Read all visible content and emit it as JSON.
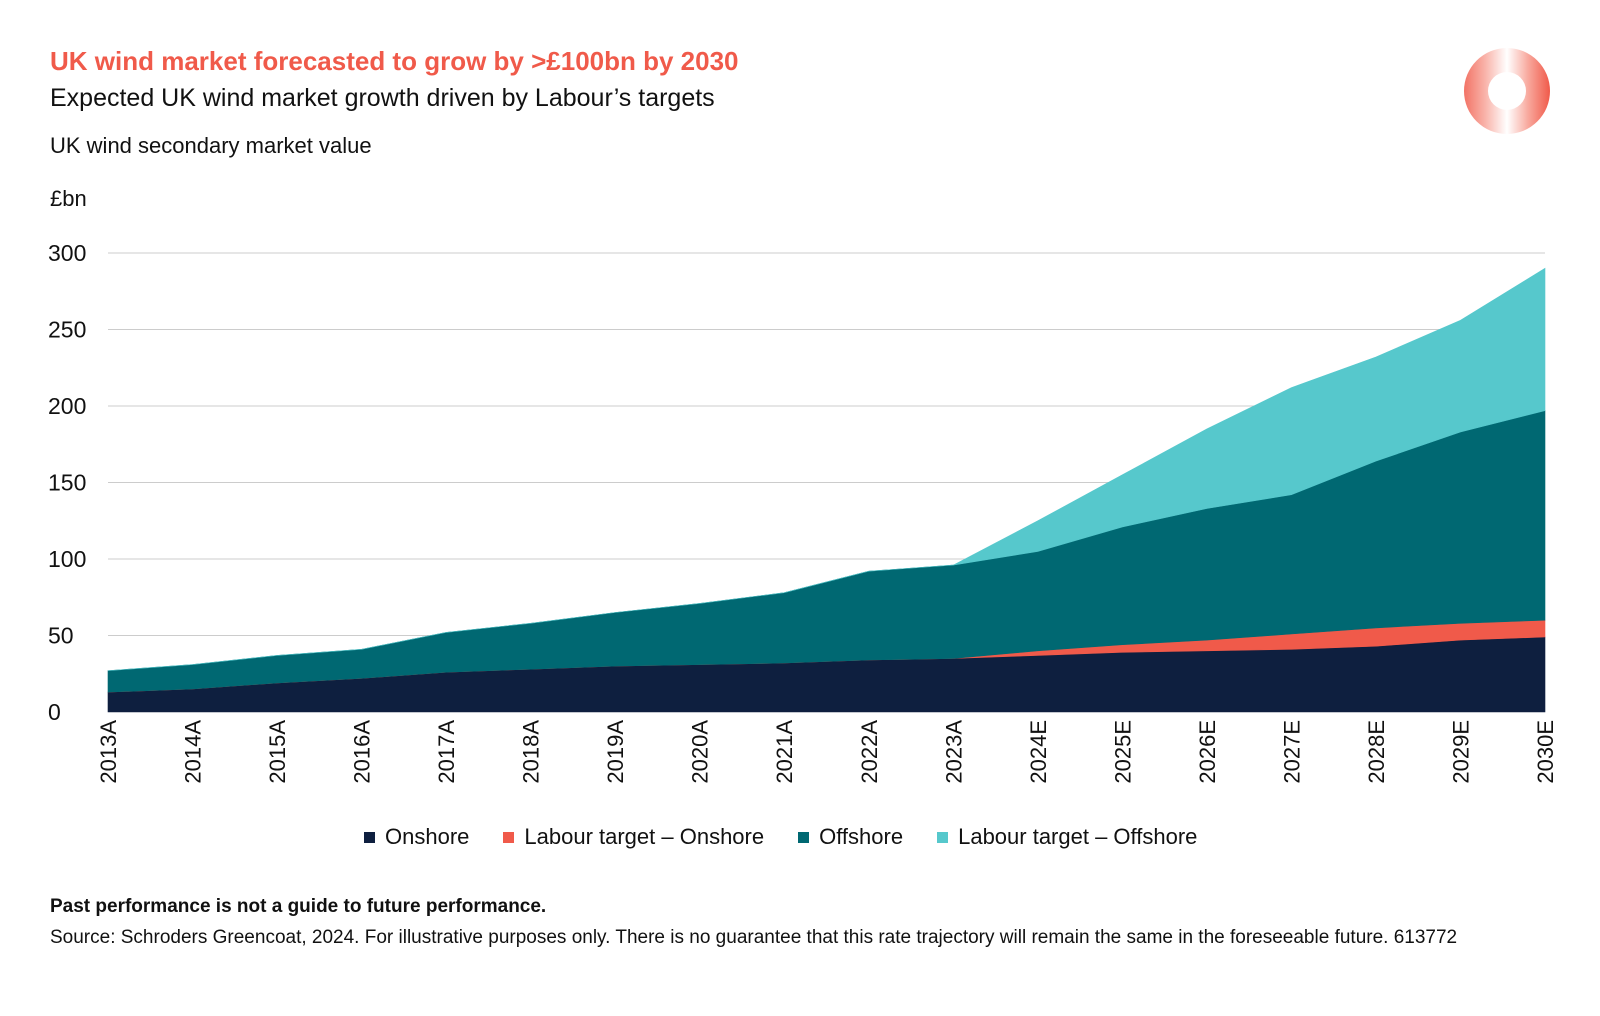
{
  "header": {
    "title": "UK wind market forecasted to grow by >£100bn by 2030",
    "subtitle": "Expected UK wind market growth driven by Labour’s targets",
    "metric_label": "UK wind secondary market value",
    "unit_label": "£bn"
  },
  "footer": {
    "disclaimer": "Past performance is not a guide to future performance.",
    "source": "Source: Schroders Greencoat, 2024. For illustrative purposes only. There is no guarantee that this rate trajectory will remain the same in the foreseeable future. 613772"
  },
  "colors": {
    "accent": "#f05a4a",
    "onshore": "#0e1f3f",
    "labour_onshore": "#f05a4a",
    "offshore": "#006872",
    "labour_offshore": "#56c8cc",
    "grid": "#cccccc"
  },
  "chart_data": {
    "type": "area",
    "stacked": true,
    "categories": [
      "2013A",
      "2014A",
      "2015A",
      "2016A",
      "2017A",
      "2018A",
      "2019A",
      "2020A",
      "2021A",
      "2022A",
      "2023A",
      "2024E",
      "2025E",
      "2026E",
      "2027E",
      "2028E",
      "2029E",
      "2030E"
    ],
    "series": [
      {
        "name": "Onshore",
        "color": "#0e1f3f",
        "values": [
          13,
          15,
          19,
          22,
          26,
          28,
          30,
          31,
          32,
          34,
          35,
          37,
          39,
          40,
          41,
          43,
          47,
          49
        ]
      },
      {
        "name": "Labour target – Onshore",
        "color": "#f05a4a",
        "values": [
          0,
          0,
          0,
          0,
          0,
          0,
          0,
          0,
          0,
          0,
          0,
          3,
          5,
          7,
          10,
          12,
          11,
          11
        ]
      },
      {
        "name": "Offshore",
        "color": "#006872",
        "values": [
          14,
          16,
          18,
          19,
          26,
          30,
          35,
          40,
          46,
          58,
          61,
          65,
          77,
          86,
          91,
          109,
          125,
          137
        ]
      },
      {
        "name": "Labour target – Offshore",
        "color": "#56c8cc",
        "values": [
          0,
          0,
          0,
          0,
          0,
          0,
          0,
          0,
          0,
          0,
          0,
          20,
          34,
          52,
          70,
          68,
          73,
          93
        ]
      }
    ],
    "y_ticks": [
      "0",
      "50",
      "100",
      "150",
      "200",
      "250",
      "300"
    ],
    "ylim": [
      0,
      300
    ],
    "ylabel": "£bn",
    "grid": true,
    "legend_position": "bottom"
  }
}
